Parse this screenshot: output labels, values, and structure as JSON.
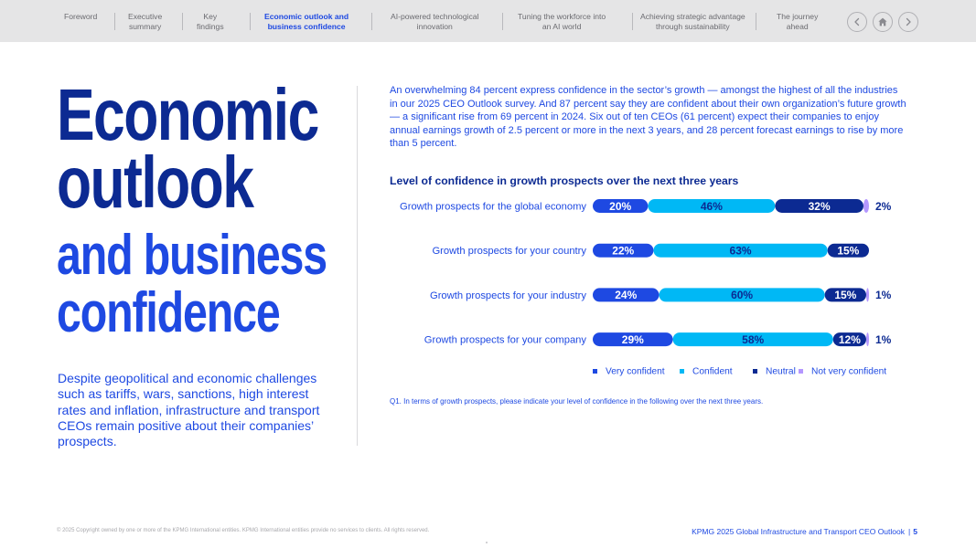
{
  "nav": {
    "items": [
      {
        "label": "Foreword",
        "active": false
      },
      {
        "label": "Executive\nsummary",
        "active": false
      },
      {
        "label": "Key\nfindings",
        "active": false
      },
      {
        "label": "Economic outlook and\nbusiness confidence",
        "active": true
      },
      {
        "label": "AI-powered technological\ninnovation",
        "active": false
      },
      {
        "label": "Tuning the workforce into\nan AI world",
        "active": false
      },
      {
        "label": "Achieving strategic advantage\nthrough sustainability",
        "active": false
      },
      {
        "label": "The journey\nahead",
        "active": false
      }
    ],
    "buttons": {
      "prev": "chevron-left-icon",
      "home": "home-icon",
      "next": "chevron-right-icon"
    }
  },
  "title": {
    "line1": "Economic",
    "line2": "outlook",
    "line3": "and business",
    "line4": "confidence"
  },
  "intro": "Despite geopolitical and economic challenges such as tariffs, wars, sanctions, high interest rates and inflation, infrastructure and transport CEOs remain positive about their companies’ prospects.",
  "body": "An overwhelming 84 percent express confidence in the sector’s growth — amongst the highest of all the industries in our 2025 CEO Outlook survey. And 87 percent say they are confident about their own organization’s future growth — a significant rise from 69 percent in 2024. Six out of ten CEOs (61 percent) expect their companies to enjoy annual earnings growth of 2.5 percent or more in the next 3 years, and 28 percent forecast earnings to rise by more than 5 percent.",
  "chart_data": {
    "type": "bar",
    "orientation": "horizontal",
    "stacked": true,
    "title": "Level of confidence in growth prospects over the next three years",
    "categories": [
      "Growth prospects for the global economy",
      "Growth prospects for your country",
      "Growth prospects for your industry",
      "Growth prospects for your company"
    ],
    "series": [
      {
        "name": "Very confident",
        "color": "#1e49e2",
        "values": [
          20,
          22,
          24,
          29
        ]
      },
      {
        "name": "Confident",
        "color": "#00b8f5",
        "values": [
          46,
          63,
          60,
          58
        ]
      },
      {
        "name": "Neutral",
        "color": "#0c2a92",
        "values": [
          32,
          15,
          15,
          12
        ]
      },
      {
        "name": "Not very confident",
        "color": "#b497ff",
        "values": [
          2,
          0,
          1,
          1
        ]
      }
    ],
    "labels": [
      [
        "20%",
        "46%",
        "32%",
        "2%"
      ],
      [
        "22%",
        "63%",
        "15%",
        ""
      ],
      [
        "24%",
        "60%",
        "15%",
        "1%"
      ],
      [
        "29%",
        "58%",
        "12%",
        "1%"
      ]
    ],
    "xlim": [
      0,
      100
    ],
    "legend_position": "bottom",
    "grid": false
  },
  "footnote": "Q1. In terms of growth prospects, please indicate your level of confidence in the following over the next three years.",
  "footer": {
    "copyright": "© 2025 Copyright owned by one or more of the KPMG International entities. KPMG International entities provide no services to clients. All rights reserved.",
    "title": "KPMG 2025 Global Infrastructure and Transport CEO Outlook",
    "page": "5"
  }
}
